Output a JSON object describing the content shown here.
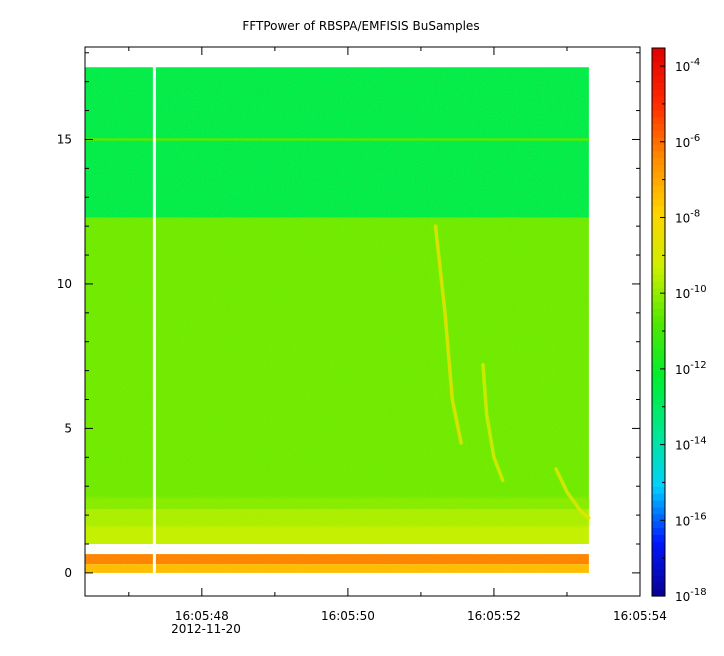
{
  "chart_data": {
    "type": "heatmap",
    "title": "FFTPower of RBSPA/EMFISIS  BuSamples",
    "xlabel": "",
    "ylabel": "",
    "date_label": "2012-11-20",
    "xlim": [
      "16:05:46.4",
      "16:05:54.0"
    ],
    "ylim": [
      -0.8,
      18.2
    ],
    "data_extent": {
      "t_start": "16:05:46.4",
      "t_end": "16:05:53.3",
      "f_min": 0,
      "f_max": 17.5
    },
    "x_ticks": [
      {
        "label": "16:05:48",
        "t": "16:05:48"
      },
      {
        "label": "16:05:50",
        "t": "16:05:50"
      },
      {
        "label": "16:05:52",
        "t": "16:05:52"
      },
      {
        "label": "16:05:54",
        "t": "16:05:54"
      }
    ],
    "x_minor_ticks": [
      "16:05:47",
      "16:05:49",
      "16:05:51",
      "16:05:53"
    ],
    "y_ticks": [
      0,
      5,
      10,
      15
    ],
    "data_gap_time": "16:05:47.35",
    "colorbar": {
      "scale": "log",
      "range": [
        1e-18,
        0.0003
      ],
      "tick_exponents": [
        -4,
        -6,
        -8,
        -10,
        -12,
        -14,
        -16,
        -18
      ],
      "tick_base": "10",
      "colors": [
        "#0a0090",
        "#0018ff",
        "#00d0ff",
        "#00e890",
        "#00ee30",
        "#50e800",
        "#ccf000",
        "#ffd400",
        "#ff8a00",
        "#ff2a00",
        "#e00000"
      ]
    },
    "bands": [
      {
        "f_from": 12.3,
        "f_to": 17.5,
        "log_power": -12.6
      },
      {
        "f_from": 2.2,
        "f_to": 12.3,
        "log_power": -10.4
      },
      {
        "f_from": 1.0,
        "f_to": 2.2,
        "log_power": -9.4
      },
      {
        "f_from": 0.3,
        "f_to": 0.65,
        "log_power": -6.3
      },
      {
        "f_from": 0,
        "f_to": 0.3,
        "log_power": -7.4
      }
    ],
    "lines": [
      {
        "f": 15.0,
        "log_power": -10.6
      }
    ],
    "chirps": [
      {
        "points": [
          [
            "16:05:51.20",
            12.0
          ],
          [
            "16:05:51.33",
            9.0
          ],
          [
            "16:05:51.43",
            6.0
          ],
          [
            "16:05:51.55",
            4.5
          ]
        ],
        "log_power": -8.6
      },
      {
        "points": [
          [
            "16:05:51.85",
            7.2
          ],
          [
            "16:05:51.90",
            5.5
          ],
          [
            "16:05:52.00",
            4.0
          ],
          [
            "16:05:52.12",
            3.2
          ]
        ],
        "log_power": -9.0
      },
      {
        "points": [
          [
            "16:05:52.85",
            3.6
          ],
          [
            "16:05:53.00",
            2.8
          ],
          [
            "16:05:53.20",
            2.1
          ],
          [
            "16:05:53.30",
            1.9
          ]
        ],
        "log_power": -8.8
      }
    ]
  }
}
